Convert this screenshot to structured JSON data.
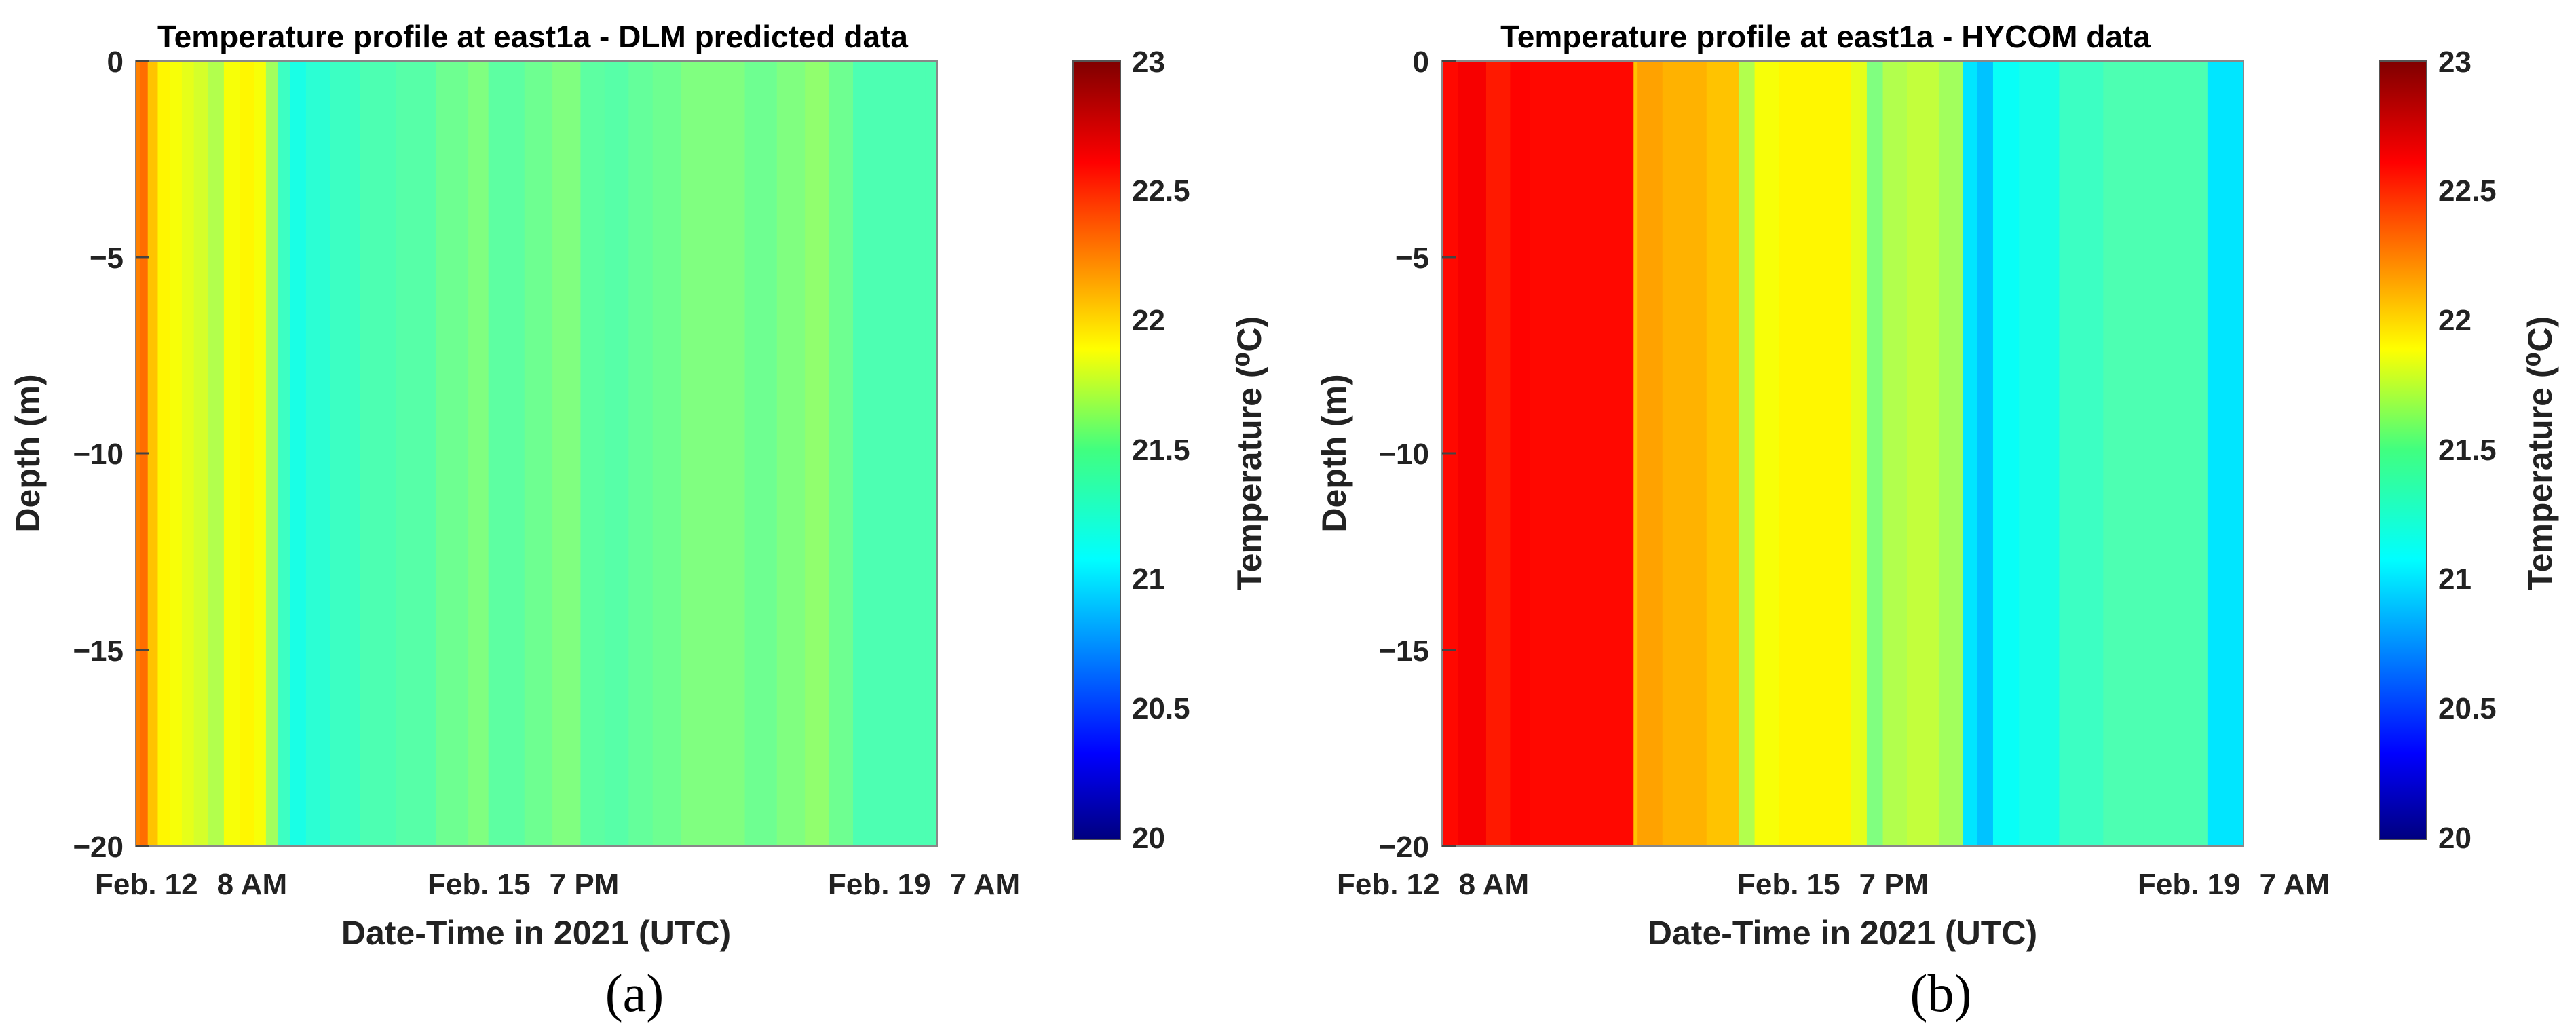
{
  "chart_data": [
    {
      "type": "heatmap",
      "panel_label": "(a)",
      "title": "Temperature profile at east1a - DLM predicted data",
      "xlabel": "Date-Time in 2021 (UTC)",
      "ylabel": "Depth (m)",
      "colorbar_label": "Temperature (⁰C)",
      "colorbar_ticks": [
        "23",
        "22.5",
        "22",
        "21.5",
        "21",
        "20.5",
        "20"
      ],
      "ylim": [
        -20,
        0
      ],
      "yticks": [
        "0",
        "−5",
        "−10",
        "−15",
        "−20"
      ],
      "xlim": [
        0,
        1
      ],
      "xticks": [
        {
          "date": "Feb. 12",
          "time": "8 AM"
        },
        {
          "date": "Feb. 15",
          "time": "7 PM"
        },
        {
          "date": "Feb. 19",
          "time": "7 AM"
        }
      ],
      "colorbar_range": [
        20,
        23
      ],
      "time_fraction": [
        0.0,
        0.01,
        0.02,
        0.035,
        0.05,
        0.065,
        0.08,
        0.1,
        0.12,
        0.14,
        0.155,
        0.17,
        0.185,
        0.2,
        0.225,
        0.26,
        0.3,
        0.35,
        0.4,
        0.43,
        0.45,
        0.47,
        0.5,
        0.54,
        0.57,
        0.6,
        0.63,
        0.66,
        0.7,
        0.74,
        0.78,
        0.82,
        0.85,
        0.88,
        0.91,
        0.94,
        0.97,
        1.0
      ],
      "temperature": [
        22.25,
        22.3,
        22.05,
        21.9,
        21.85,
        21.8,
        21.75,
        21.65,
        21.85,
        21.9,
        21.85,
        21.6,
        21.3,
        21.2,
        21.25,
        21.3,
        21.35,
        21.38,
        21.45,
        21.5,
        21.4,
        21.4,
        21.45,
        21.5,
        21.4,
        21.38,
        21.42,
        21.45,
        21.5,
        21.5,
        21.45,
        21.5,
        21.55,
        21.45,
        21.35,
        21.35,
        21.35,
        21.35
      ]
    },
    {
      "type": "heatmap",
      "panel_label": "(b)",
      "title": "Temperature profile at east1a - HYCOM data",
      "xlabel": "Date-Time in 2021 (UTC)",
      "ylabel": "Depth (m)",
      "colorbar_label": "Temperature (⁰C)",
      "colorbar_ticks": [
        "23",
        "22.5",
        "22",
        "21.5",
        "21",
        "20.5",
        "20"
      ],
      "ylim": [
        -20,
        0
      ],
      "yticks": [
        "0",
        "−5",
        "−10",
        "−15",
        "−20"
      ],
      "xlim": [
        0,
        1
      ],
      "xticks": [
        {
          "date": "Feb. 12",
          "time": "8 AM"
        },
        {
          "date": "Feb. 15",
          "time": "7 PM"
        },
        {
          "date": "Feb. 19",
          "time": "7 AM"
        }
      ],
      "colorbar_range": [
        20,
        23
      ],
      "time_fraction": [
        0.0,
        0.04,
        0.07,
        0.1,
        0.12,
        0.2,
        0.24,
        0.238,
        0.25,
        0.3,
        0.36,
        0.38,
        0.4,
        0.44,
        0.5,
        0.52,
        0.54,
        0.56,
        0.6,
        0.64,
        0.66,
        0.675,
        0.7,
        0.74,
        0.8,
        0.85,
        0.9,
        0.95,
        0.96,
        1.0
      ],
      "temperature": [
        22.6,
        22.65,
        22.55,
        22.62,
        22.6,
        22.6,
        22.6,
        22.05,
        22.15,
        22.1,
        22.05,
        21.65,
        21.85,
        21.9,
        21.9,
        21.8,
        21.5,
        21.65,
        21.7,
        21.6,
        21.05,
        20.95,
        21.15,
        21.2,
        21.3,
        21.35,
        21.35,
        21.35,
        21.05,
        21.05
      ]
    }
  ]
}
